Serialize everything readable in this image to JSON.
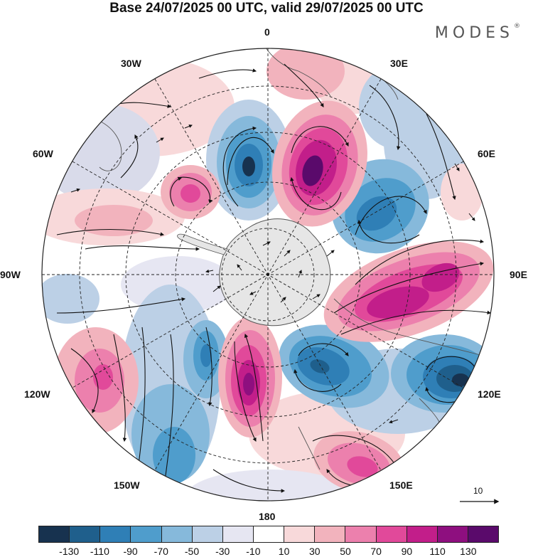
{
  "title": "Base 24/07/2025 00 UTC, valid 29/07/2025 00 UTC",
  "brand": "MODES",
  "brand_mark": "®",
  "longitude_labels": {
    "lon_0": "0",
    "lon_30e": "30E",
    "lon_60e": "60E",
    "lon_90e": "90E",
    "lon_120e": "120E",
    "lon_150e": "150E",
    "lon_180": "180",
    "lon_150w": "150W",
    "lon_120w": "120W",
    "lon_90w": "90W",
    "lon_60w": "60W",
    "lon_30w": "30W"
  },
  "reference_vector_label": "10",
  "legend": {
    "colors": [
      "#17324f",
      "#1f5f8c",
      "#2f7fb6",
      "#4f9dcc",
      "#86b9db",
      "#bcd0e6",
      "#e6e6f2",
      "#ffffff",
      "#f8d9da",
      "#f2b3bd",
      "#ec80ad",
      "#e1499a",
      "#c21e8a",
      "#8e0f7f",
      "#5a0a6b"
    ],
    "ticks": [
      "-130",
      "-110",
      "-90",
      "-70",
      "-50",
      "-30",
      "-10",
      "10",
      "30",
      "50",
      "70",
      "90",
      "110",
      "130"
    ]
  },
  "anomaly_colors": {
    "neg_strong": "#1f5f8c",
    "neg_mid": "#4f9dcc",
    "neg_weak": "#bcd0e6",
    "pos_weak": "#f2b3bd",
    "pos_mid": "#e1499a",
    "pos_strong": "#8e0f7f"
  }
}
